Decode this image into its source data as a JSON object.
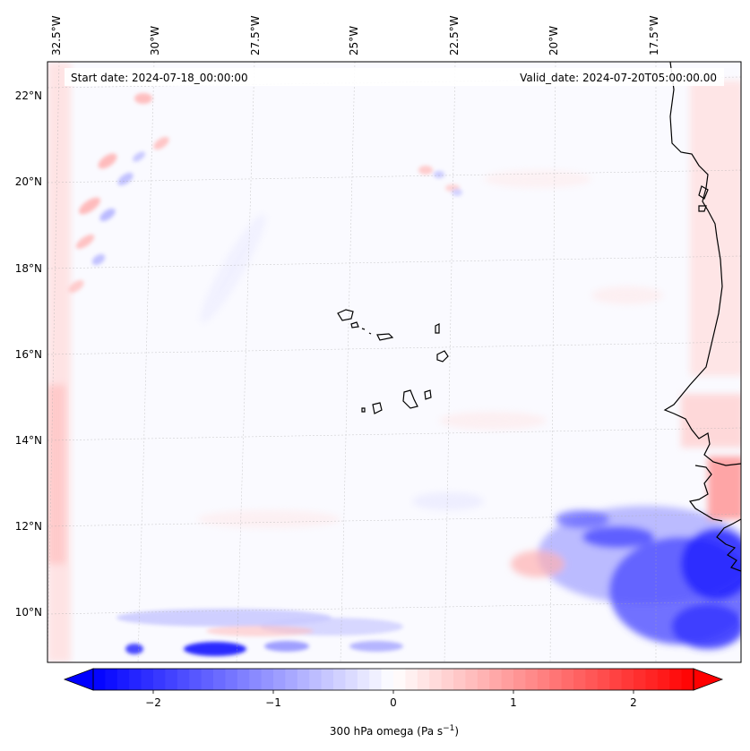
{
  "map": {
    "start_date": "Start date: 2024-07-18_00:00:00",
    "valid_date": "Valid_date: 2024-07-20T05:00:00.00",
    "lon_ticks": [
      "32.5°W",
      "30°W",
      "27.5°W",
      "25°W",
      "22.5°W",
      "20°W",
      "17.5°W"
    ],
    "lat_ticks": [
      "22°N",
      "20°N",
      "18°N",
      "16°N",
      "14°N",
      "12°N",
      "10°N"
    ],
    "variable": "300 hPa omega",
    "colorbar": {
      "label_text": "300 hPa omega (Pa s",
      "label_exponent": "−1",
      "label_close": ")",
      "ticks": [
        "−2",
        "−1",
        "0",
        "1",
        "2"
      ],
      "tick_values": [
        -2,
        -1,
        0,
        1,
        2
      ],
      "vmin": -2.5,
      "vmax": 2.5,
      "levels": 50,
      "colormap": "bwr",
      "min_color": "#0000ff",
      "mid_color": "#ffffff",
      "max_color": "#ff0000"
    }
  }
}
